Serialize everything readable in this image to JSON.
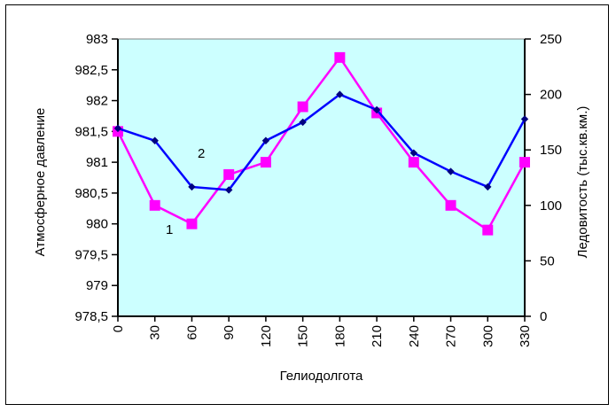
{
  "chart_data": {
    "type": "line",
    "xlabel": "Гелиодолгота",
    "ylabel_left": "Атмосферное давление",
    "ylabel_right": "Ледовитость (тыс.кв.км.)",
    "x": [
      0,
      30,
      60,
      90,
      120,
      150,
      180,
      210,
      240,
      270,
      300,
      330
    ],
    "x_tick_labels": [
      "0",
      "30",
      "60",
      "90",
      "120",
      "150",
      "180",
      "210",
      "240",
      "270",
      "300",
      "330"
    ],
    "y_left_lim": [
      978.5,
      983
    ],
    "y_left_tick_labels": [
      "983",
      "982,5",
      "982",
      "981,5",
      "981",
      "980,5",
      "980",
      "979,5",
      "979",
      "978,5"
    ],
    "y_right_lim": [
      0,
      250
    ],
    "y_right_tick_labels": [
      "250",
      "200",
      "150",
      "100",
      "50",
      "0"
    ],
    "grid": false,
    "plot_background": "#ccffff",
    "series": [
      {
        "name": "1",
        "axis": "left",
        "color": "#ff00ff",
        "marker": "square",
        "values": [
          981.5,
          980.3,
          980.0,
          980.8,
          981.0,
          981.9,
          982.7,
          981.8,
          981.0,
          980.3,
          979.9,
          981.0
        ]
      },
      {
        "name": "2",
        "axis": "left",
        "color": "#0000ff",
        "marker": "diamond",
        "values": [
          981.55,
          981.35,
          980.6,
          980.55,
          981.35,
          981.65,
          982.1,
          981.85,
          981.15,
          980.85,
          980.6,
          981.7
        ]
      }
    ]
  }
}
